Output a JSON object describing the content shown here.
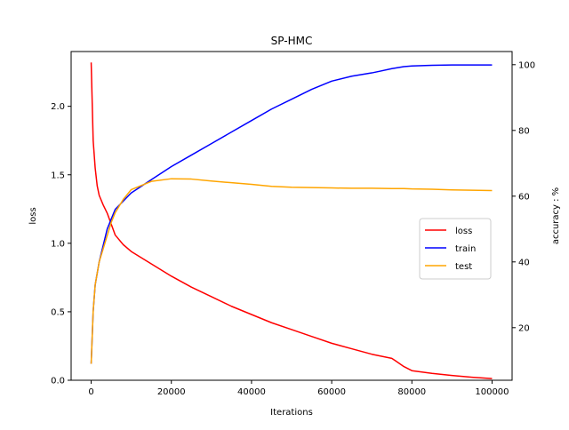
{
  "chart_data": {
    "type": "line",
    "title": "SP-HMC",
    "xlabel": "Iterations",
    "ylabel": "loss",
    "y2label": "accuracy : %",
    "xlim": [
      -5000,
      105000
    ],
    "ylim": [
      0.0,
      2.4
    ],
    "y2lim": [
      4,
      104
    ],
    "xticks": [
      0,
      20000,
      40000,
      60000,
      80000,
      100000
    ],
    "yticks": [
      0.0,
      0.5,
      1.0,
      1.5,
      2.0
    ],
    "y2ticks": [
      20,
      40,
      60,
      80,
      100
    ],
    "legend_position": "center-right",
    "grid": false,
    "series": [
      {
        "name": "loss",
        "axis": "left",
        "color": "#ff0000",
        "x": [
          0,
          500,
          1000,
          1500,
          2000,
          3000,
          4000,
          5000,
          6000,
          8000,
          10000,
          15000,
          20000,
          25000,
          30000,
          35000,
          40000,
          45000,
          50000,
          55000,
          60000,
          65000,
          70000,
          75000,
          76000,
          78000,
          80000,
          85000,
          90000,
          95000,
          100000
        ],
        "values": [
          2.32,
          1.75,
          1.55,
          1.42,
          1.35,
          1.28,
          1.22,
          1.14,
          1.06,
          0.99,
          0.94,
          0.85,
          0.76,
          0.68,
          0.61,
          0.54,
          0.48,
          0.42,
          0.37,
          0.32,
          0.27,
          0.23,
          0.19,
          0.16,
          0.14,
          0.1,
          0.07,
          0.05,
          0.035,
          0.022,
          0.012
        ]
      },
      {
        "name": "train",
        "axis": "right",
        "color": "#0000ff",
        "x": [
          0,
          500,
          1000,
          2000,
          3000,
          4000,
          5000,
          6000,
          8000,
          10000,
          15000,
          20000,
          25000,
          30000,
          35000,
          40000,
          45000,
          50000,
          55000,
          60000,
          65000,
          70000,
          72000,
          75000,
          76000,
          78000,
          80000,
          85000,
          90000,
          95000,
          100000
        ],
        "values": [
          9,
          25,
          33,
          40,
          45,
          50,
          53,
          56,
          58.5,
          61,
          65,
          69,
          72.5,
          76,
          79.5,
          83,
          86.5,
          89.5,
          92.5,
          95,
          96.5,
          97.5,
          98,
          98.8,
          99,
          99.4,
          99.6,
          99.8,
          99.9,
          99.9,
          99.9
        ]
      },
      {
        "name": "test",
        "axis": "right",
        "color": "#ffa500",
        "x": [
          0,
          500,
          1000,
          2000,
          3000,
          4000,
          5000,
          6000,
          8000,
          10000,
          15000,
          20000,
          25000,
          30000,
          35000,
          40000,
          45000,
          50000,
          55000,
          60000,
          65000,
          70000,
          75000,
          76000,
          78000,
          80000,
          85000,
          90000,
          95000,
          100000
        ],
        "values": [
          9,
          25,
          33,
          40,
          44,
          48,
          52,
          55,
          59,
          62,
          64.5,
          65.3,
          65.2,
          64.6,
          64.1,
          63.6,
          63,
          62.7,
          62.6,
          62.5,
          62.4,
          62.4,
          62.3,
          62.3,
          62.3,
          62.2,
          62.1,
          61.9,
          61.8,
          61.7
        ]
      }
    ]
  }
}
